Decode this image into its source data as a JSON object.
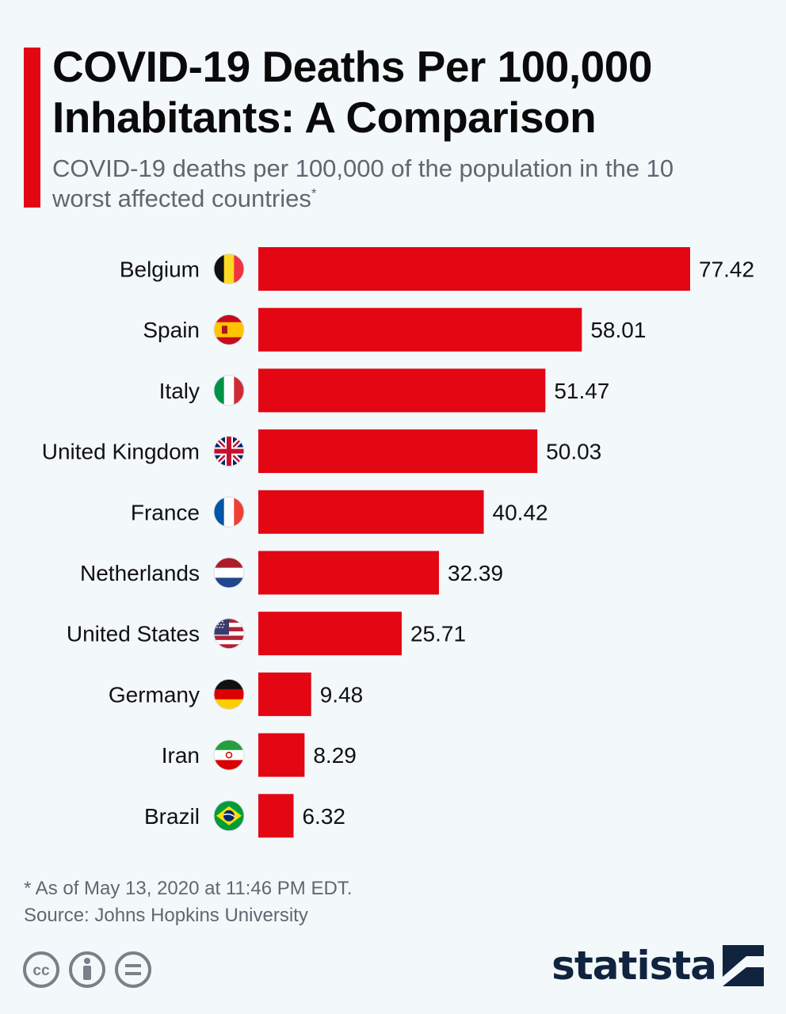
{
  "header": {
    "title": "COVID-19 Deaths Per 100,000 Inhabitants: A Comparison",
    "subtitle": "COVID-19 deaths per 100,000 of the population in the 10 worst affected countries",
    "subtitle_marker": "*"
  },
  "colors": {
    "bar": "#e30613",
    "accent": "#e30613",
    "background": "#f3f8fb",
    "text": "#111111",
    "muted": "#5f6770"
  },
  "chart_data": {
    "type": "bar",
    "orientation": "horizontal",
    "categories": [
      "Belgium",
      "Spain",
      "Italy",
      "United Kingdom",
      "France",
      "Netherlands",
      "United States",
      "Germany",
      "Iran",
      "Brazil"
    ],
    "values": [
      77.42,
      58.01,
      51.47,
      50.03,
      40.42,
      32.39,
      25.71,
      9.48,
      8.29,
      6.32
    ],
    "value_labels": [
      "77.42",
      "58.01",
      "51.47",
      "50.03",
      "40.42",
      "32.39",
      "25.71",
      "9.48",
      "8.29",
      "6.32"
    ],
    "flags": [
      "belgium-flag-icon",
      "spain-flag-icon",
      "italy-flag-icon",
      "uk-flag-icon",
      "france-flag-icon",
      "netherlands-flag-icon",
      "us-flag-icon",
      "germany-flag-icon",
      "iran-flag-icon",
      "brazil-flag-icon"
    ],
    "xlim": [
      0,
      77.42
    ],
    "grid": false,
    "legend": "none"
  },
  "footer": {
    "note": "* As of May 13, 2020 at 11:46 PM EDT.",
    "source": "Source: Johns Hopkins University",
    "license_icons": [
      "cc-icon",
      "by-icon",
      "nd-icon"
    ],
    "logo": "statista"
  }
}
